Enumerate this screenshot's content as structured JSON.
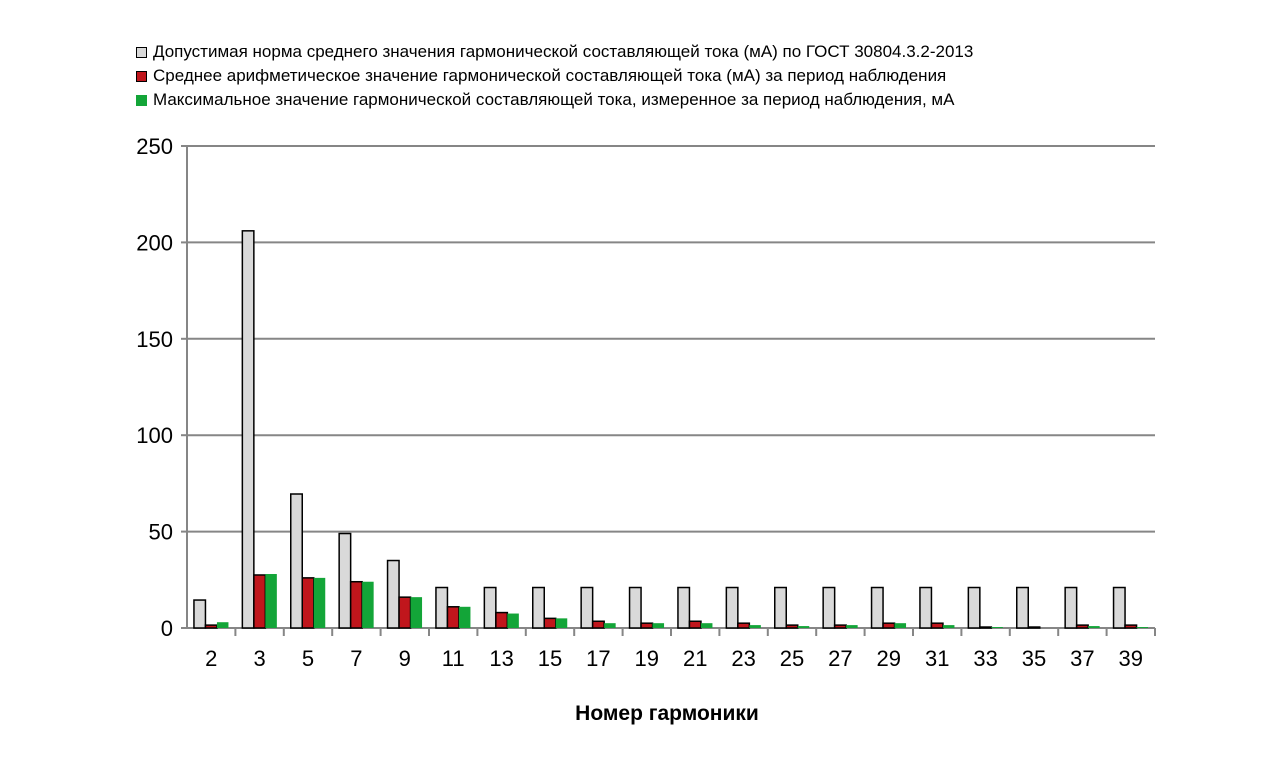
{
  "chart_data": {
    "type": "bar",
    "title": "",
    "xlabel": "Номер гармоники",
    "ylabel": "",
    "ylim": [
      0,
      250
    ],
    "yticks": [
      0,
      50,
      100,
      150,
      200,
      250
    ],
    "grid": true,
    "legend_position": "top",
    "categories": [
      "2",
      "3",
      "5",
      "7",
      "9",
      "11",
      "13",
      "15",
      "17",
      "19",
      "21",
      "23",
      "25",
      "27",
      "29",
      "31",
      "33",
      "35",
      "37",
      "39"
    ],
    "series": [
      {
        "name": "Допустимая норма среднего значения гармонической составляющей тока (мА) по ГОСТ 30804.3.2-2013",
        "color": "#d9d9d9",
        "values": [
          14.5,
          206,
          69.5,
          49,
          35,
          21,
          21,
          21,
          21,
          21,
          21,
          21,
          21,
          21,
          21,
          21,
          21,
          21,
          21,
          21
        ]
      },
      {
        "name": "Среднее арифметическое значение гармонической составляющей тока (мА) за период наблюдения",
        "color": "#c0161c",
        "values": [
          1.5,
          27.5,
          26,
          24,
          16,
          11,
          8,
          5,
          3.5,
          2.5,
          3.5,
          2.5,
          1.5,
          1.5,
          2.5,
          2.5,
          0.5,
          0.5,
          1.5,
          1.5
        ]
      },
      {
        "name": "Максимальное значение гармонической составляющей тока, измеренное за период наблюдения, мА",
        "color": "#13a538",
        "values": [
          3,
          28,
          26,
          24,
          16,
          11,
          7.5,
          5,
          2.5,
          2.5,
          2.5,
          1.5,
          1,
          1.5,
          2.5,
          1.5,
          0.5,
          0,
          1,
          0.5
        ]
      }
    ]
  }
}
